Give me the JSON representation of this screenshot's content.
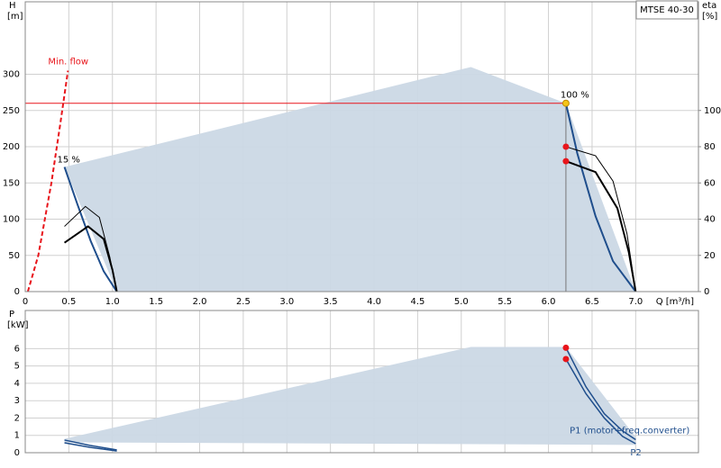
{
  "chart_data": [
    {
      "type": "line",
      "title": "MTSE 40-30",
      "ylabel": "H",
      "yunit": "[m]",
      "y2label": "eta",
      "y2unit": "[%]",
      "xlabel": "Q [m³/h]",
      "xlim": [
        0,
        7.72
      ],
      "ylim": [
        0,
        400
      ],
      "y2lim": [
        0,
        160
      ],
      "grid": true,
      "xtick_labels": true,
      "xticks": [
        0,
        0.5,
        {
          "value": 1,
          "label": "1.0"
        },
        1.5,
        {
          "value": 2,
          "label": "2.0"
        },
        2.5,
        {
          "value": 3,
          "label": "3.0"
        },
        3.5,
        {
          "value": 4,
          "label": "4.0"
        },
        4.5,
        {
          "value": 5,
          "label": "5.0"
        },
        5.5,
        {
          "value": 6,
          "label": "6.0"
        },
        6.5,
        {
          "value": 7,
          "label": "7.0"
        }
      ],
      "yticks": [
        0,
        50,
        100,
        150,
        200,
        250,
        300
      ],
      "y2ticks": [
        0,
        20,
        40,
        60,
        80,
        100
      ],
      "series": [
        {
          "kind": "area",
          "color": "#cbd8e5",
          "x": [
            0.45,
            5.11,
            6.2,
            7.0,
            1.05
          ],
          "values": [
            172,
            310,
            260,
            0,
            0
          ]
        },
        {
          "name": "Min. flow",
          "kind": "line",
          "dash": true,
          "color": "#e8151b",
          "width": 2,
          "label": "top",
          "x": [
            0.03,
            0.15,
            0.3,
            0.4,
            0.49
          ],
          "values": [
            0,
            50,
            150,
            230,
            305
          ]
        },
        {
          "kind": "line",
          "color": "#e8151b",
          "width": 1,
          "x": [
            0,
            6.2
          ],
          "values": [
            260,
            260
          ]
        },
        {
          "kind": "line",
          "color": "#777777",
          "width": 1,
          "x": [
            6.2,
            6.2
          ],
          "values": [
            0,
            260
          ]
        },
        {
          "name": "15 %",
          "kind": "line",
          "color": "#1f4e8c",
          "width": 2,
          "label": "start",
          "x": [
            0.45,
            0.6,
            0.75,
            0.9,
            1.05
          ],
          "values": [
            172,
            120,
            70,
            28,
            0
          ]
        },
        {
          "name": "100 %",
          "kind": "line",
          "color": "#1f4e8c",
          "width": 2,
          "label": "start-right",
          "x": [
            6.2,
            6.33,
            6.54,
            6.74,
            7.0
          ],
          "values": [
            260,
            191,
            104,
            42,
            0
          ]
        },
        {
          "kind": "line",
          "color": "#000000",
          "width": 1,
          "axis": "y2",
          "x": [
            0.45,
            0.69,
            0.85,
            0.97,
            1.05
          ],
          "values": [
            36,
            47,
            41,
            19,
            0
          ]
        },
        {
          "kind": "line",
          "color": "#000000",
          "width": 2,
          "axis": "y2",
          "x": [
            0.45,
            0.72,
            0.9,
            1.0,
            1.05
          ],
          "values": [
            27,
            36,
            29,
            12,
            0
          ]
        },
        {
          "kind": "line",
          "color": "#000000",
          "width": 1,
          "axis": "y2",
          "x": [
            6.2,
            6.54,
            6.74,
            6.9,
            7.0
          ],
          "values": [
            80,
            75,
            61,
            32,
            0
          ]
        },
        {
          "kind": "line",
          "color": "#000000",
          "width": 2,
          "axis": "y2",
          "x": [
            6.2,
            6.54,
            6.79,
            6.92,
            7.0
          ],
          "values": [
            72,
            66,
            46,
            22,
            0
          ]
        },
        {
          "kind": "point",
          "color": "#e8151b",
          "axis": "y2",
          "x": [
            6.2,
            6.2
          ],
          "values": [
            80,
            72
          ]
        },
        {
          "kind": "point",
          "color": "#f5c518",
          "x": [
            6.2
          ],
          "values": [
            260
          ]
        }
      ]
    },
    {
      "type": "line",
      "ylabel": "P",
      "yunit": "[kW]",
      "xlim": [
        0,
        7.72
      ],
      "ylim": [
        0,
        8.2
      ],
      "grid": true,
      "xtick_labels": false,
      "xticks": [
        0,
        0.5,
        1,
        1.5,
        2,
        2.5,
        3,
        3.5,
        4,
        4.5,
        5,
        5.5,
        6,
        6.5,
        7
      ],
      "yticks": [
        0,
        1,
        2,
        3,
        4,
        5,
        6
      ],
      "series": [
        {
          "kind": "area",
          "color": "#cbd8e5",
          "x": [
            0.45,
            5.11,
            6.2,
            7.0,
            7.0,
            0.45
          ],
          "values": [
            0.8,
            6.1,
            6.1,
            0.9,
            0.45,
            0.6
          ]
        },
        {
          "name": "P1 (motor+freq.converter)",
          "kind": "line",
          "color": "#1f4e8c",
          "width": 1.5,
          "label": "end-above",
          "x": [
            6.2,
            6.43,
            6.64,
            6.85,
            7.0
          ],
          "values": [
            6.05,
            3.8,
            2.25,
            1.25,
            0.75
          ]
        },
        {
          "name": "P2",
          "kind": "line",
          "color": "#1f4e8c",
          "width": 1.5,
          "label": "end-below",
          "x": [
            6.2,
            6.43,
            6.64,
            6.85,
            7.0
          ],
          "values": [
            5.4,
            3.4,
            2.0,
            0.94,
            0.52
          ]
        },
        {
          "kind": "line",
          "color": "#1f4e8c",
          "width": 1.5,
          "x": [
            0.45,
            0.74,
            1.05
          ],
          "values": [
            0.73,
            0.42,
            0.16
          ]
        },
        {
          "kind": "line",
          "color": "#1f4e8c",
          "width": 1.5,
          "x": [
            0.45,
            0.74,
            1.05
          ],
          "values": [
            0.57,
            0.31,
            0.1
          ]
        },
        {
          "kind": "point",
          "color": "#e8151b",
          "x": [
            6.2,
            6.2
          ],
          "values": [
            6.05,
            5.4
          ]
        }
      ]
    }
  ]
}
